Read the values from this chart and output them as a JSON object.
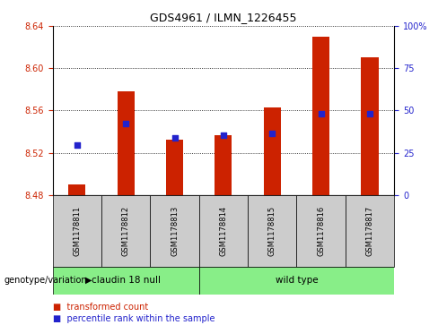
{
  "title": "GDS4961 / ILMN_1226455",
  "samples": [
    "GSM1178811",
    "GSM1178812",
    "GSM1178813",
    "GSM1178814",
    "GSM1178815",
    "GSM1178816",
    "GSM1178817"
  ],
  "transformed_counts": [
    8.49,
    8.578,
    8.532,
    8.537,
    8.563,
    8.63,
    8.61
  ],
  "percentile_values": [
    8.527,
    8.548,
    8.534,
    8.537,
    8.538,
    8.557,
    8.557
  ],
  "base_value": 8.48,
  "ylim": [
    8.48,
    8.64
  ],
  "yticks": [
    8.48,
    8.52,
    8.56,
    8.6,
    8.64
  ],
  "right_yticks": [
    0,
    25,
    50,
    75,
    100
  ],
  "bar_color": "#cc2200",
  "dot_color": "#2222cc",
  "group1_label": "claudin 18 null",
  "group2_label": "wild type",
  "group1_indices": [
    0,
    1,
    2
  ],
  "group2_indices": [
    3,
    4,
    5,
    6
  ],
  "group_color": "#88ee88",
  "group_label_text": "genotype/variation",
  "legend_bar_label": "transformed count",
  "legend_dot_label": "percentile rank within the sample",
  "bar_color_left_tick": "#cc2200",
  "bar_color_right_tick": "#2222cc",
  "bar_width": 0.35,
  "dot_size": 20,
  "sample_area_color": "#cccccc"
}
